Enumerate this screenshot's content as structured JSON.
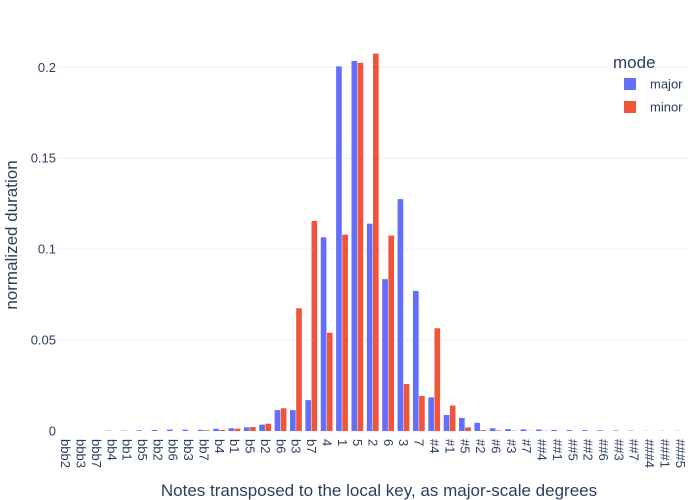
{
  "chart_data": {
    "type": "bar",
    "title": "",
    "xlabel": "Notes transposed to the local key, as major-scale degrees",
    "ylabel": "normalized duration",
    "ylim": [
      0,
      0.215
    ],
    "y_ticks": [
      0,
      0.05,
      0.1,
      0.15,
      0.2
    ],
    "y_tick_labels": [
      "0",
      "0.05",
      "0.1",
      "0.15",
      "0.2"
    ],
    "grid": true,
    "legend": {
      "title": "mode",
      "position": "top-right"
    },
    "categories": [
      "bbb2",
      "bbb3",
      "bbb7",
      "bb4",
      "bb1",
      "bb5",
      "bb2",
      "bb6",
      "bb3",
      "bb7",
      "b4",
      "b1",
      "b5",
      "b2",
      "b6",
      "b3",
      "b7",
      "4",
      "1",
      "5",
      "2",
      "6",
      "3",
      "7",
      "#4",
      "#1",
      "#5",
      "#2",
      "#6",
      "#3",
      "#7",
      "##4",
      "##1",
      "##5",
      "##2",
      "##6",
      "##3",
      "##7",
      "###4",
      "###1",
      "###5"
    ],
    "series": [
      {
        "name": "major",
        "color": "#636efa",
        "values": [
          0,
          0,
          0,
          0.0002,
          0.0002,
          0.0004,
          0.0006,
          0.0008,
          0.0007,
          0.0006,
          0.0012,
          0.0015,
          0.002,
          0.0035,
          0.0115,
          0.0115,
          0.017,
          0.1065,
          0.2005,
          0.2035,
          0.114,
          0.0835,
          0.1275,
          0.077,
          0.0185,
          0.0088,
          0.0072,
          0.0045,
          0.0015,
          0.001,
          0.0009,
          0.0008,
          0.0006,
          0.0005,
          0.0005,
          0.0004,
          0.0003,
          0.0002,
          0.0001,
          0.0001,
          0.0001
        ]
      },
      {
        "name": "minor",
        "color": "#ef553b",
        "values": [
          0,
          0,
          0,
          0,
          0,
          0,
          0,
          0,
          0,
          0.0004,
          0.0006,
          0.0013,
          0.0022,
          0.004,
          0.0125,
          0.0675,
          0.1155,
          0.054,
          0.108,
          0.2025,
          0.2075,
          0.1075,
          0.0258,
          0.0193,
          0.0565,
          0.014,
          0.002,
          0.0005,
          0.0003,
          0.0002,
          0.0001,
          0.0001,
          0,
          0,
          0,
          0,
          0,
          0,
          0,
          0,
          0
        ]
      }
    ]
  }
}
